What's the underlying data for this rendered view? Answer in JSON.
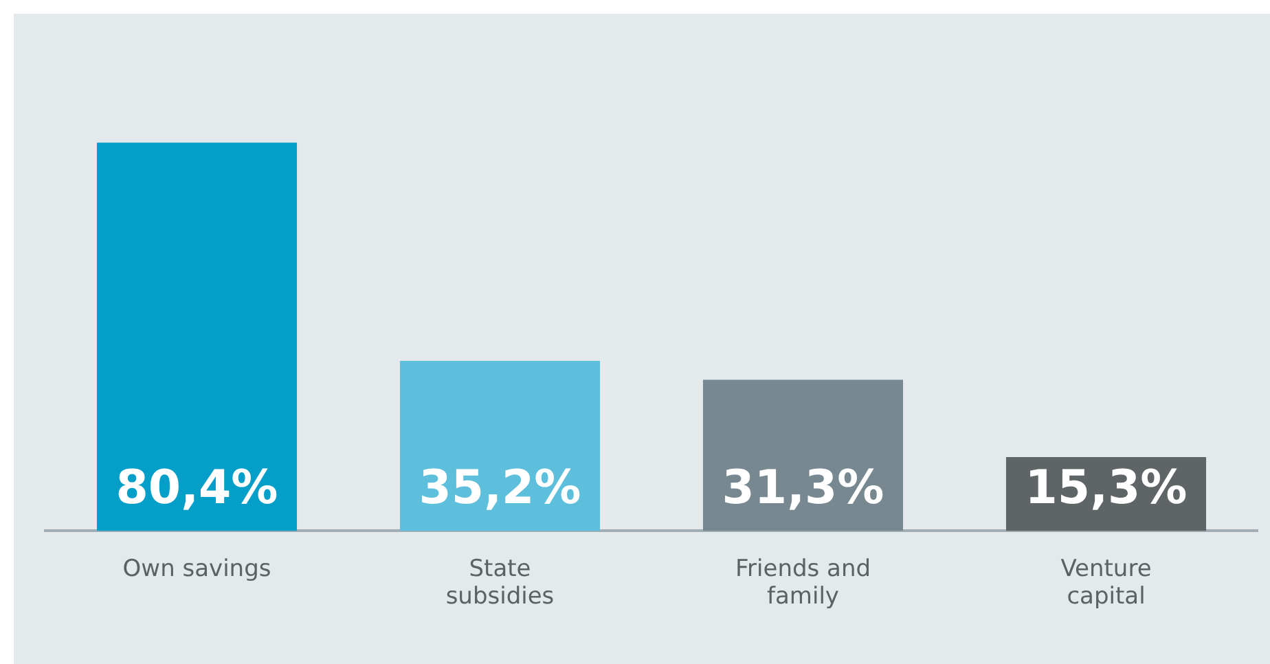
{
  "chart_data": {
    "type": "bar",
    "categories": [
      "Own savings",
      "State subsidies",
      "Friends and family",
      "Venture capital"
    ],
    "values": [
      80.4,
      35.2,
      31.3,
      15.3
    ],
    "colors": [
      "#039fc8",
      "#5dbfdc",
      "#778891",
      "#5f6467"
    ],
    "value_labels": [
      "80,4%",
      "35,2%",
      "31,3%",
      "15,3%"
    ],
    "grid": false,
    "legend": false
  }
}
